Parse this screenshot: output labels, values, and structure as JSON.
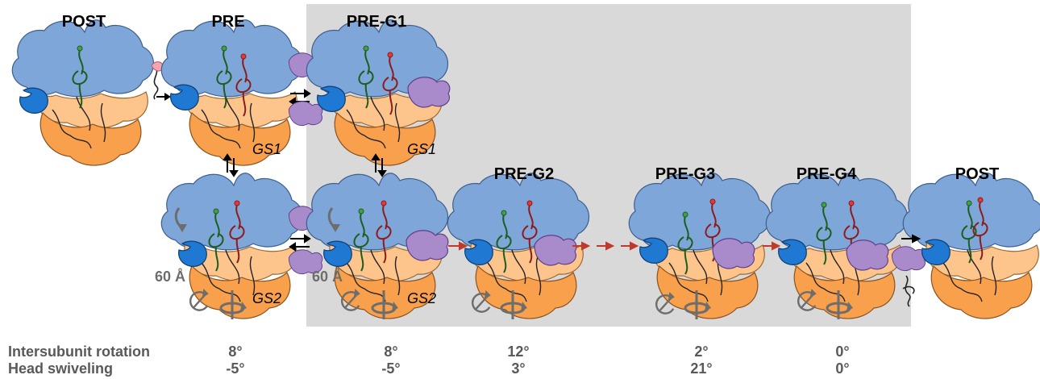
{
  "states": {
    "post_start": "POST",
    "pre": "PRE",
    "pre_g1": "PRE-G1",
    "pre_g2": "PRE-G2",
    "pre_g3": "PRE-G3",
    "pre_g4": "PRE-G4",
    "post_end": "POST"
  },
  "gs_labels": {
    "gs1_a": "GS1",
    "gs1_b": "GS1",
    "gs2_a": "GS2",
    "gs2_b": "GS2"
  },
  "distance_labels": {
    "a": "60 Å",
    "b": "60 Å"
  },
  "table": {
    "row1_label": "Intersubunit rotation",
    "row2_label": "Head swiveling",
    "intersubunit_rotation": [
      "8°",
      "8°",
      "12°",
      "2°",
      "0°"
    ],
    "head_swiveling": [
      "-5°",
      "-5°",
      "3°",
      "21°",
      "0°"
    ]
  },
  "colors": {
    "small_subunit_body": "#7fa6d8",
    "large_subunit_light": "#fdc48c",
    "large_subunit_dark": "#f8a04c",
    "ef_g": "#a98bcc",
    "ef_g_domain": "#1f78d1",
    "trna_red": "#c0392b",
    "trna_green": "#2e7d32",
    "shaded_region": "#d9d9d9",
    "forward_arrow": "#c0392b",
    "rotation_arrow": "#6d6d6d"
  }
}
